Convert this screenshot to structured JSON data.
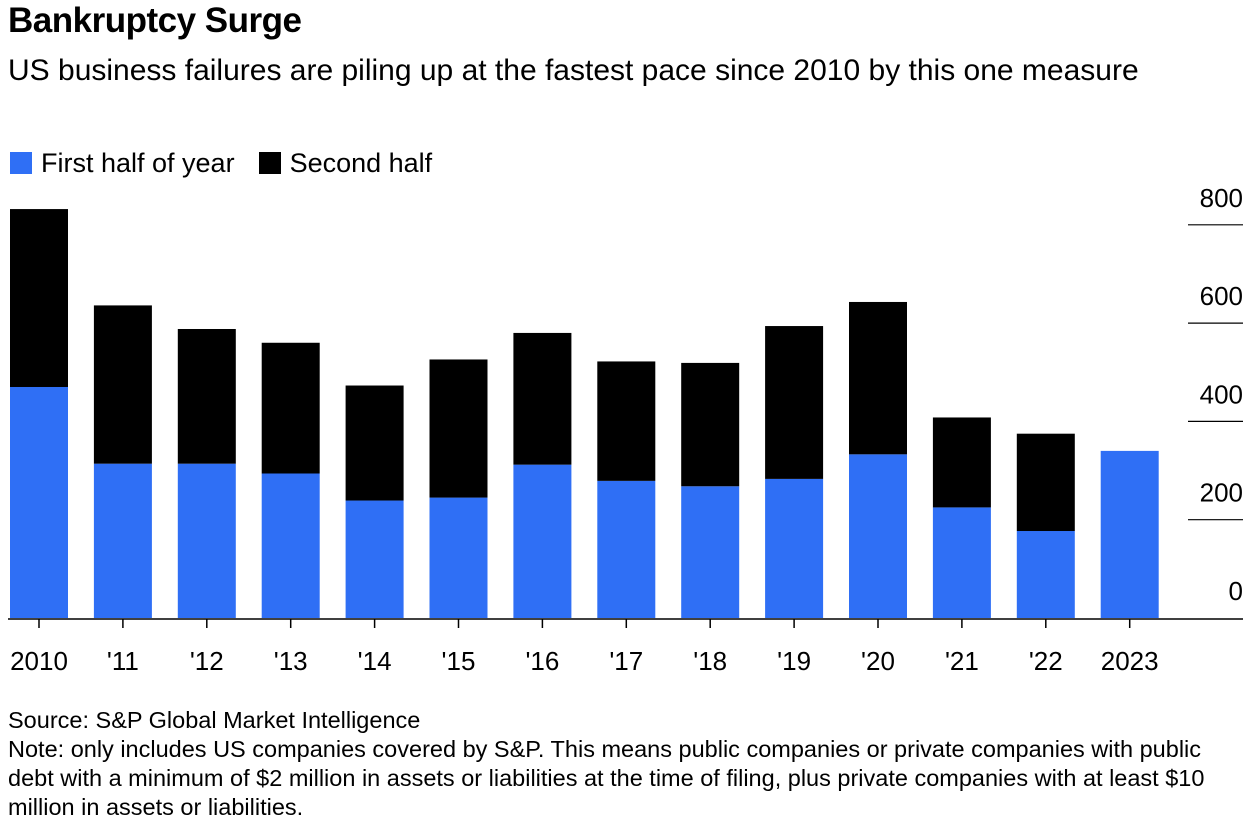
{
  "header": {
    "title": "Bankruptcy Surge",
    "subtitle": "US business failures are piling up at the fastest pace since 2010 by this one measure"
  },
  "legend": [
    {
      "label": "First half of year",
      "color": "#2f6ff5"
    },
    {
      "label": "Second half",
      "color": "#000000"
    }
  ],
  "footer": {
    "source": "Source: S&P Global Market Intelligence",
    "note": "Note: only includes US companies covered by S&P. This means public companies or private companies with public debt with a minimum of $2 million in assets or liabilities at the time of filing, plus private companies with at least $10 million in assets or liabilities."
  },
  "chart_data": {
    "type": "bar",
    "stacked": true,
    "categories": [
      "2010",
      "'11",
      "'12",
      "'13",
      "'14",
      "'15",
      "'16",
      "'17",
      "'18",
      "'19",
      "'20",
      "'21",
      "'22",
      "2023"
    ],
    "series": [
      {
        "name": "First half of year",
        "color": "#2f6ff5",
        "values": [
          470,
          314,
          314,
          294,
          239,
          245,
          312,
          279,
          268,
          283,
          333,
          225,
          177,
          340
        ]
      },
      {
        "name": "Second half",
        "color": "#000000",
        "values": [
          362,
          322,
          274,
          266,
          234,
          281,
          268,
          243,
          251,
          311,
          310,
          183,
          198,
          0
        ]
      }
    ],
    "yticks": [
      0,
      200,
      400,
      600,
      800
    ],
    "ylim": [
      0,
      800
    ],
    "yaxis_position": "right",
    "grid": false,
    "legend_position": "top-left"
  }
}
